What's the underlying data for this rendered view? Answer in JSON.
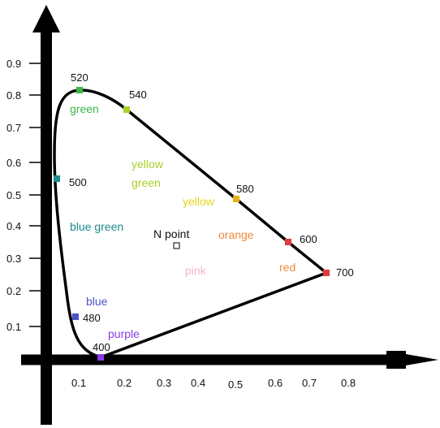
{
  "axes": {
    "x_ticks": [
      "0.1",
      "0.2",
      "0.3",
      "0.4",
      "0.5",
      "0.6",
      "0.7",
      "0.8"
    ],
    "y_ticks": [
      "0.1",
      "0.2",
      "0.3",
      "0.4",
      "0.5",
      "0.6",
      "0.7",
      "0.8",
      "0.9"
    ]
  },
  "wavelength_labels": {
    "w400": "400",
    "w480": "480",
    "w500": "500",
    "w520": "520",
    "w540": "540",
    "w580": "580",
    "w600": "600",
    "w700": "700"
  },
  "regions": {
    "green": "green",
    "yellow_green_1": "yellow",
    "yellow_green_2": "green",
    "yellow": "yellow",
    "blue_green": "blue green",
    "orange": "orange",
    "red": "red",
    "pink": "pink",
    "blue": "blue",
    "purple": "purple"
  },
  "n_point": {
    "label": "N point"
  },
  "colors": {
    "green": "#3db54a",
    "yellow_green": "#a8d12a",
    "yellow": "#e8d31a",
    "blue_green": "#1e8a8f",
    "orange": "#f08a3c",
    "red": "#e03c3c",
    "pink": "#f4b6c8",
    "blue": "#4a55c8",
    "purple": "#8a3ce8",
    "axis": "#000000"
  }
}
